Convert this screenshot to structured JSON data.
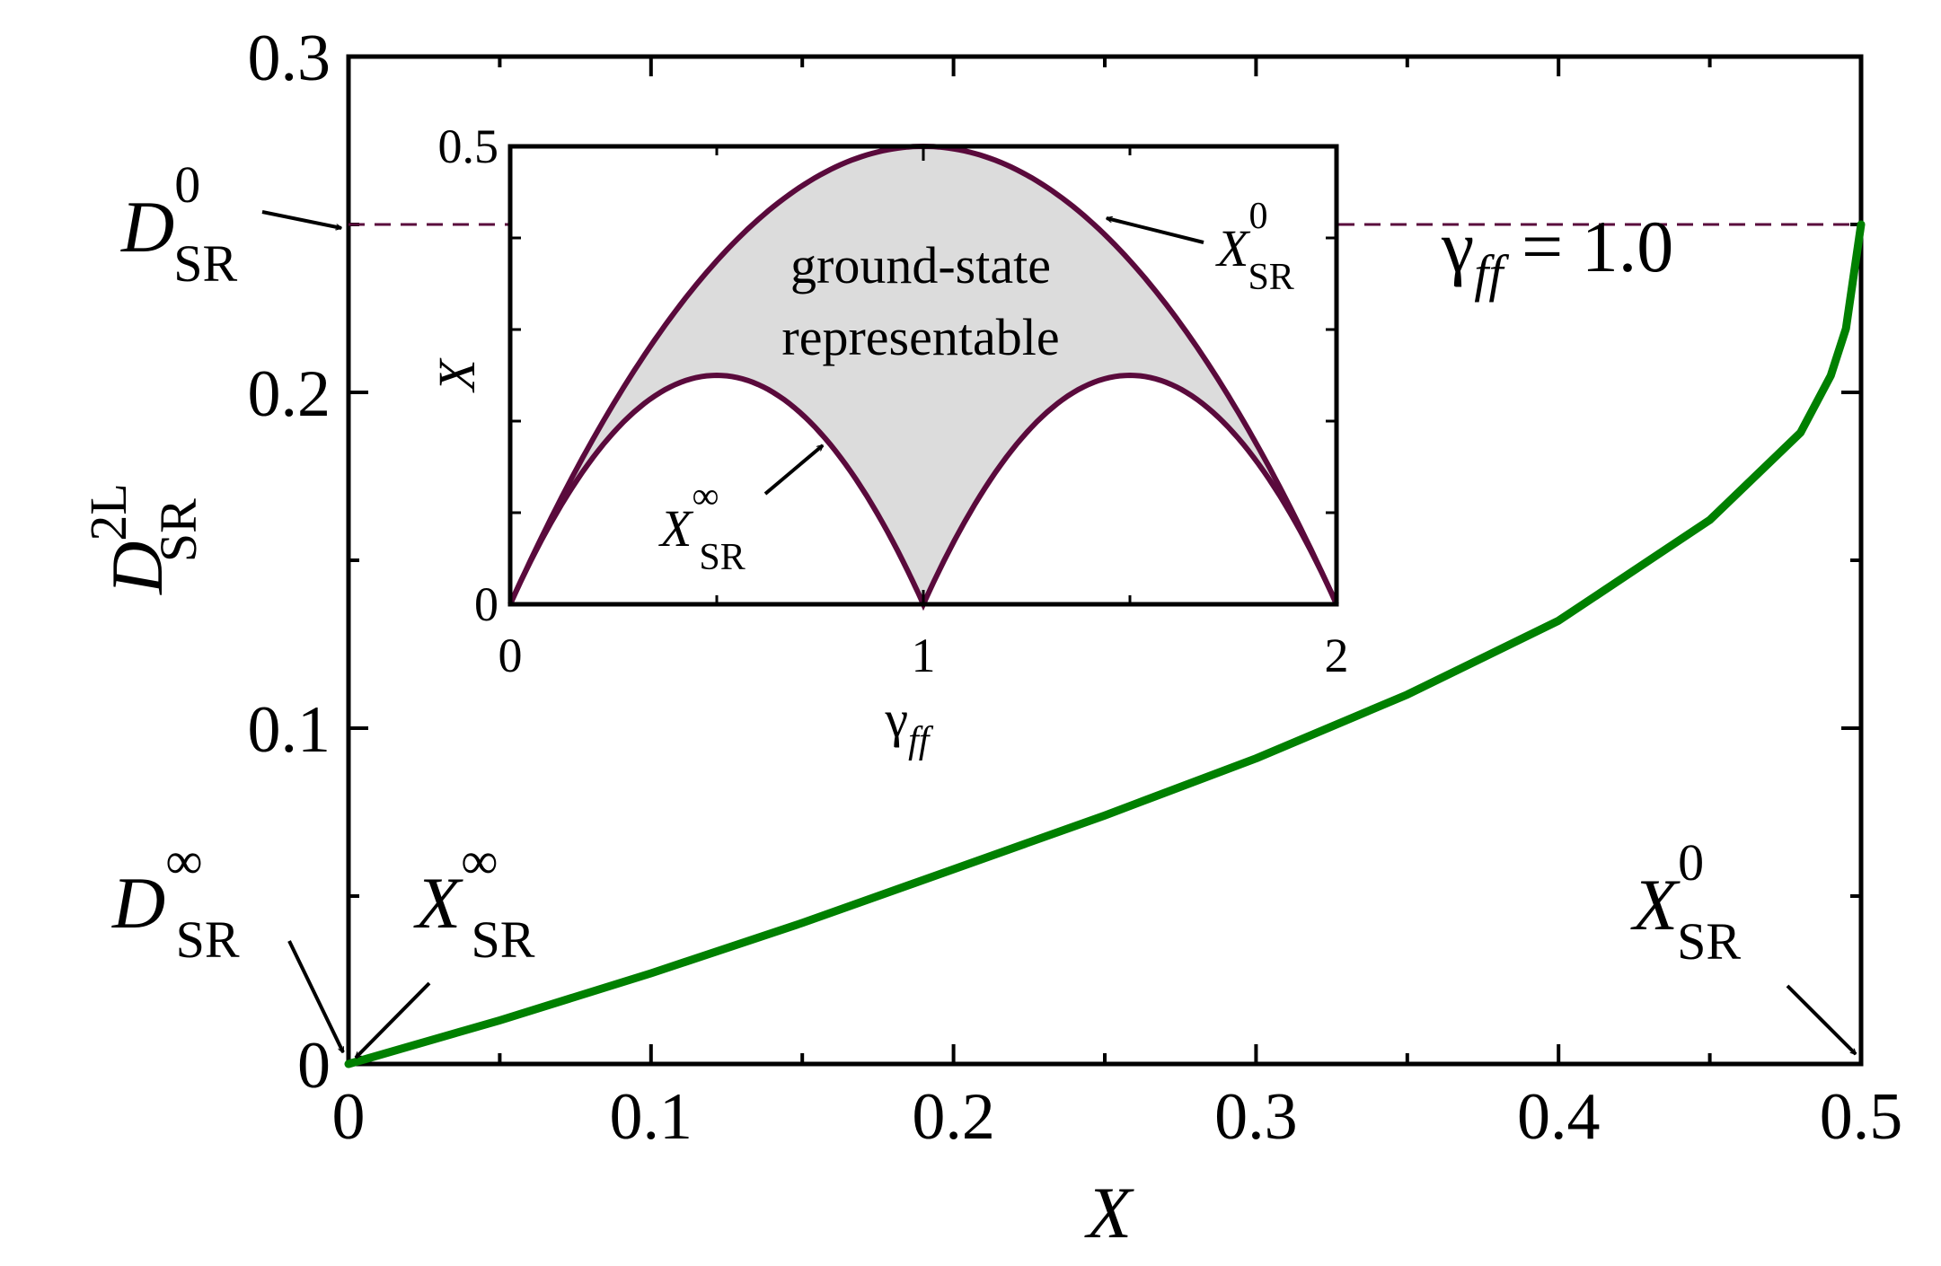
{
  "chart_data": [
    {
      "type": "line",
      "role": "main",
      "xlabel": "X",
      "ylabel": {
        "base": "D",
        "sup": "2L",
        "sub": "SR"
      },
      "xlim": [
        0,
        0.5
      ],
      "ylim": [
        0,
        0.3
      ],
      "x_ticks": [
        "0",
        "0.1",
        "0.2",
        "0.3",
        "0.4",
        "0.5"
      ],
      "y_ticks": [
        "0",
        "0.1",
        "0.2",
        "0.3"
      ],
      "grid": false,
      "series": [
        {
          "color": "#008000",
          "x": [
            0,
            0.05,
            0.1,
            0.15,
            0.2,
            0.25,
            0.3,
            0.35,
            0.4,
            0.45,
            0.48,
            0.49,
            0.495,
            0.5
          ],
          "y": [
            0,
            0.013,
            0.027,
            0.042,
            0.058,
            0.074,
            0.091,
            0.11,
            0.132,
            0.162,
            0.188,
            0.205,
            0.219,
            0.25
          ]
        }
      ],
      "reference_line": {
        "y": 0.25,
        "color": "#5a0a3c",
        "style": "dashed"
      },
      "annotations": {
        "gamma_label": {
          "base": "γ",
          "sub": "ff",
          "rest": " = 1.0"
        },
        "d_sr_0": {
          "base": "D",
          "sup": "0",
          "sub": "SR"
        },
        "d_sr_inf": {
          "base": "D",
          "sup": "∞",
          "sub": "SR"
        },
        "x_sr_inf": {
          "base": "X",
          "sup": "∞",
          "sub": "SR"
        },
        "x_sr_0": {
          "base": "X",
          "sup": "0",
          "sub": "SR"
        }
      }
    },
    {
      "type": "area",
      "role": "inset",
      "xlabel": {
        "base": "γ",
        "sub": "ff"
      },
      "ylabel": "X",
      "xlim": [
        0,
        2
      ],
      "ylim": [
        0,
        0.5
      ],
      "x_ticks": [
        "0",
        "1",
        "2"
      ],
      "y_ticks": [
        "0",
        "0.5"
      ],
      "series": [
        {
          "role": "upper",
          "color": "#5a0a3c",
          "formula": "γ(2-γ)/2"
        },
        {
          "role": "lower",
          "color": "#5a0a3c",
          "formula": "min(γ(1-γ), (γ-1)(2-γ)) magnitudes, peak 0.25"
        }
      ],
      "fill_color": "#dcdcdc",
      "region_label": [
        "ground-state",
        "representable"
      ],
      "annotations": {
        "x_sr_0": {
          "base": "X",
          "sup": "0",
          "sub": "SR"
        },
        "x_sr_inf": {
          "base": "X",
          "sup": "∞",
          "sub": "SR"
        }
      }
    }
  ]
}
